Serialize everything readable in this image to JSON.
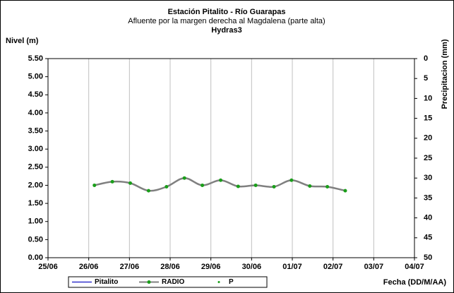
{
  "chart_data": {
    "type": "line",
    "title": "Estación Pitalito  - Río Guarapas",
    "subtitle": "Afluente por la margen derecha al Magdalena (parte alta)",
    "subtitle2": "Hydras3",
    "ylabel": "Nivel (m)",
    "y2label": "Precipitacion (mm)",
    "xlabel": "Fecha (DD/M/AA)",
    "x": [
      1.14,
      1.58,
      2.02,
      2.47,
      2.91,
      3.35,
      3.79,
      4.24,
      4.67,
      5.1,
      5.55,
      5.98,
      6.43,
      6.86,
      7.3
    ],
    "xlim": [
      0,
      8
    ],
    "xticks": [
      {
        "value": 0,
        "label": "25/06"
      },
      {
        "value": 1,
        "label": "26/06"
      },
      {
        "value": 2,
        "label": "27/06"
      },
      {
        "value": 3,
        "label": "28/06"
      },
      {
        "value": 4,
        "label": "29/06"
      },
      {
        "value": 5,
        "label": "30/06"
      },
      {
        "value": 6,
        "label": "01/07"
      },
      {
        "value": 7,
        "label": "02/07"
      },
      {
        "value": 8,
        "label": "03/07"
      },
      {
        "value": 9,
        "label": "04/07"
      }
    ],
    "ylim": [
      0,
      5.5
    ],
    "yticks": [
      {
        "value": 0,
        "label": "0.00"
      },
      {
        "value": 0.5,
        "label": "0.50"
      },
      {
        "value": 1,
        "label": "1.00"
      },
      {
        "value": 1.5,
        "label": "1.50"
      },
      {
        "value": 2,
        "label": "2.00"
      },
      {
        "value": 2.5,
        "label": "2.50"
      },
      {
        "value": 3,
        "label": "3.00"
      },
      {
        "value": 3.5,
        "label": "3.50"
      },
      {
        "value": 4,
        "label": "4.00"
      },
      {
        "value": 4.5,
        "label": "4.50"
      },
      {
        "value": 5,
        "label": "5.00"
      },
      {
        "value": 5.5,
        "label": "5.50"
      }
    ],
    "y2lim": [
      0,
      50
    ],
    "y2_inverted": true,
    "y2ticks": [
      0,
      5,
      10,
      15,
      20,
      25,
      30,
      35,
      40,
      45,
      50
    ],
    "xgrid": true,
    "series": [
      {
        "name": "Pitalito",
        "color": "#3333cc",
        "values": [
          null,
          null,
          null,
          null,
          null,
          null,
          null,
          null,
          null,
          null,
          null,
          null,
          null,
          null,
          null
        ]
      },
      {
        "name": "RADIO",
        "color": "#808080",
        "marker_color": "#1a9e1a",
        "values": [
          2.0,
          2.1,
          2.06,
          1.85,
          1.96,
          2.2,
          2.0,
          2.14,
          1.97,
          2.0,
          1.96,
          2.14,
          1.98,
          1.96,
          1.85
        ]
      },
      {
        "name": "P",
        "color": "#1a9e1a",
        "axis": "y2",
        "values": [
          null,
          null,
          null,
          null,
          null,
          null,
          null,
          null,
          null,
          null,
          null,
          null,
          null,
          null,
          null
        ]
      }
    ]
  }
}
